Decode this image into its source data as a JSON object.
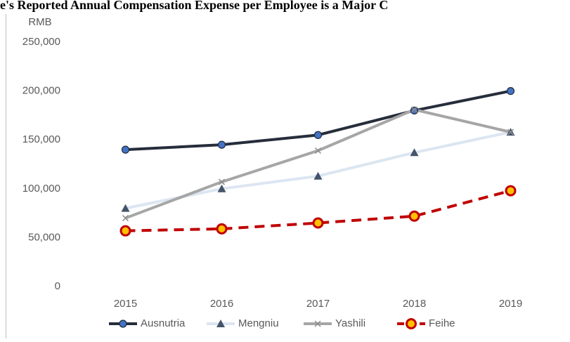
{
  "chart_data": {
    "type": "line",
    "title": "e's Reported Annual Compensation Expense per Employee is a Major C",
    "y_label": "RMB",
    "categories": [
      "2015",
      "2016",
      "2017",
      "2018",
      "2019"
    ],
    "series": [
      {
        "name": "Ausnutria",
        "color": "#262d3b",
        "marker_color": "#4472c4",
        "marker": "circle",
        "dash": false,
        "values": [
          140000,
          145000,
          155000,
          180000,
          200000
        ]
      },
      {
        "name": "Mengniu",
        "color": "#dce6f2",
        "marker_color": "#44546a",
        "marker": "triangle",
        "dash": false,
        "values": [
          80000,
          100000,
          113000,
          137000,
          158000
        ]
      },
      {
        "name": "Yashili",
        "color": "#a6a6a6",
        "marker_color": "#a6a6a6",
        "marker": "x",
        "dash": false,
        "values": [
          70000,
          107000,
          139000,
          181000,
          158000
        ]
      },
      {
        "name": "Feihe",
        "color": "#c00000",
        "marker_color": "#ffc000",
        "marker": "circle",
        "dash": true,
        "values": [
          57000,
          59000,
          65000,
          72000,
          98000
        ]
      }
    ],
    "ylim": [
      0,
      250000
    ],
    "yticks": [
      0,
      {
        "value": 50000,
        "label": "50,000"
      },
      {
        "value": 100000,
        "label": "100,000"
      },
      {
        "value": 150000,
        "label": "150,000"
      },
      {
        "value": 200000,
        "label": "200,000"
      },
      {
        "value": 250000,
        "label": "250,000"
      }
    ],
    "grid": false
  }
}
